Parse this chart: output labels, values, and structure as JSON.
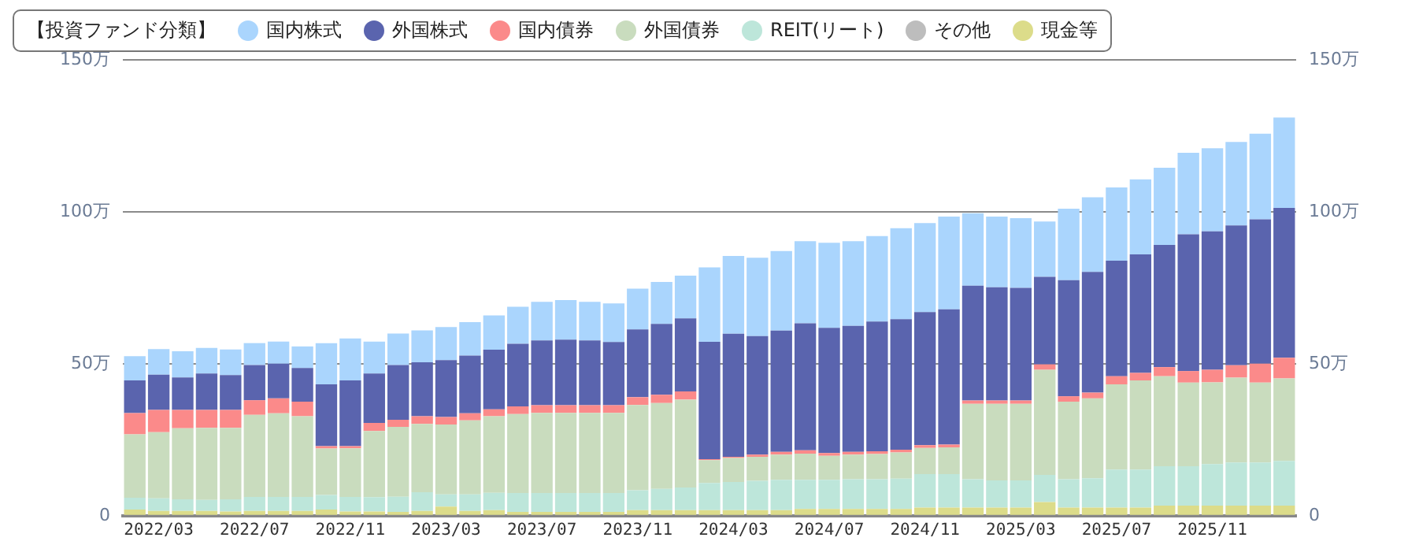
{
  "chart_data": {
    "type": "bar",
    "stacked": true,
    "legend_title": "【投資ファンド分類】",
    "legend": "top left",
    "grid": "y",
    "categories": [
      null,
      "2022/03",
      null,
      null,
      null,
      "2022/07",
      null,
      null,
      null,
      "2022/11",
      null,
      null,
      null,
      "2023/03",
      null,
      null,
      null,
      "2023/07",
      null,
      null,
      null,
      "2023/11",
      null,
      null,
      null,
      "2024/03",
      null,
      null,
      null,
      "2024/07",
      null,
      null,
      null,
      "2024/11",
      null,
      null,
      null,
      "2025/03",
      null,
      null,
      null,
      "2025/07",
      null,
      null,
      null,
      "2025/11",
      null,
      null,
      null
    ],
    "ylim": [
      0,
      150
    ],
    "yticks": [
      0,
      {
        "value": 50,
        "label": "50万"
      },
      {
        "value": 100,
        "label": "100万"
      },
      {
        "value": 150,
        "label": "150万"
      }
    ],
    "y2lim": [
      0,
      150
    ],
    "y2ticks": [
      0,
      {
        "value": 50,
        "label": "50万"
      },
      {
        "value": 100,
        "label": "100万"
      },
      {
        "value": 150,
        "label": "150万"
      }
    ],
    "series": [
      {
        "name": "現金等",
        "color": "#dcdc8a",
        "values": [
          2,
          1.6,
          1.6,
          1.6,
          1.4,
          1.6,
          1.6,
          1.6,
          2,
          1.4,
          1.4,
          1.25,
          1.6,
          3,
          1.6,
          1.8,
          1.25,
          1.25,
          1.25,
          1.25,
          1.25,
          1.8,
          1.8,
          1.8,
          1.8,
          1.8,
          1.8,
          1.8,
          2.2,
          2.2,
          2.2,
          2.2,
          2.2,
          2.7,
          2.7,
          2.7,
          2.7,
          2.7,
          4.5,
          2.7,
          2.7,
          2.7,
          2.7,
          3.3,
          3.3,
          3.3,
          3.3,
          3.3,
          3.3
        ]
      },
      {
        "name": "その他",
        "color": "#bdbdbd",
        "values": [
          0,
          0,
          0,
          0,
          0,
          0,
          0,
          0,
          0,
          0,
          0,
          0,
          0,
          0,
          0,
          0,
          0,
          0,
          0,
          0,
          0,
          0,
          0,
          0,
          0,
          0,
          0,
          0,
          0,
          0,
          0,
          0,
          0,
          0,
          0,
          0,
          0,
          0,
          0,
          0,
          0,
          0,
          0,
          0,
          0,
          0,
          0,
          0,
          0
        ]
      },
      {
        "name": "REIT(リート)",
        "color": "#bde6da",
        "values": [
          3.9,
          4.1,
          3.8,
          3.6,
          4,
          4.6,
          4.6,
          4.6,
          4.8,
          4.8,
          4.7,
          5,
          6.1,
          4,
          5.4,
          5.7,
          6.2,
          6.2,
          6.2,
          6.2,
          6.2,
          6.6,
          7,
          7.5,
          9,
          9.3,
          9.7,
          10,
          9.6,
          9.6,
          9.8,
          9.8,
          10,
          11,
          11,
          9.3,
          8.9,
          8.9,
          8.9,
          9.3,
          9.6,
          12.5,
          12.5,
          13,
          13,
          13.7,
          14.2,
          14.2,
          14.7
        ]
      },
      {
        "name": "外国債券",
        "color": "#c9dcbe",
        "values": [
          20.9,
          21.8,
          23.4,
          23.7,
          23.5,
          27,
          27.5,
          26.5,
          15.3,
          16,
          21.8,
          23,
          22.5,
          23,
          24.4,
          25.2,
          26,
          26.4,
          26.4,
          26.4,
          26.4,
          28,
          28.3,
          28.9,
          7.5,
          7.9,
          7.9,
          8.3,
          8.6,
          7.9,
          8.1,
          8.3,
          8.6,
          8.6,
          8.8,
          24.8,
          25.2,
          25.2,
          34.6,
          25.5,
          26.3,
          28,
          29.3,
          29.6,
          27.5,
          26.9,
          27.9,
          26.3,
          27.2
        ]
      },
      {
        "name": "国内債券",
        "color": "#fb8a8a",
        "values": [
          7,
          7.3,
          6,
          5.9,
          5.9,
          4.8,
          4.9,
          4.8,
          0.8,
          0.7,
          2.6,
          2.3,
          2.5,
          2.5,
          2.3,
          2.3,
          2.5,
          2.5,
          2.5,
          2.5,
          2.5,
          2.6,
          2.7,
          2.7,
          0.3,
          0.4,
          0.7,
          0.9,
          1.1,
          0.9,
          0.9,
          0.9,
          0.9,
          0.9,
          0.9,
          1.1,
          1.1,
          1.1,
          1.8,
          1.8,
          1.9,
          2.7,
          2.5,
          3,
          3.8,
          4.1,
          4.1,
          6.2,
          6.8
        ]
      },
      {
        "name": "外国株式",
        "color": "#5a64ae",
        "values": [
          10.7,
          11.6,
          10.7,
          12,
          11.5,
          11.6,
          11.4,
          11.1,
          20.3,
          21.6,
          16.3,
          18,
          17.8,
          18.7,
          19,
          19.6,
          20.6,
          21.3,
          21.6,
          21.3,
          20.8,
          22.3,
          23.3,
          24,
          38.6,
          40.5,
          39,
          39.9,
          41.8,
          41.2,
          41.5,
          42.7,
          43,
          43.8,
          44.5,
          37.8,
          37.3,
          37.1,
          28.8,
          38.2,
          39.7,
          38,
          39,
          40.2,
          45,
          45.6,
          46,
          47.5,
          49.3
        ]
      },
      {
        "name": "国内株式",
        "color": "#aad5fd",
        "values": [
          8,
          8.4,
          8.6,
          8.4,
          8.4,
          7.2,
          7.3,
          7.1,
          13.6,
          13.8,
          10.5,
          10.4,
          10.5,
          10.9,
          11,
          11.3,
          12.2,
          12.7,
          13,
          12.7,
          12.7,
          13.4,
          13.8,
          14.1,
          24.5,
          25.6,
          25.8,
          26.2,
          27,
          28,
          27.8,
          28.1,
          29.9,
          29.3,
          30.5,
          23.8,
          23.2,
          22.9,
          18.2,
          23.5,
          24.6,
          24.1,
          24.7,
          25.4,
          26.8,
          27.3,
          27.5,
          28.2,
          29.7
        ]
      }
    ]
  }
}
